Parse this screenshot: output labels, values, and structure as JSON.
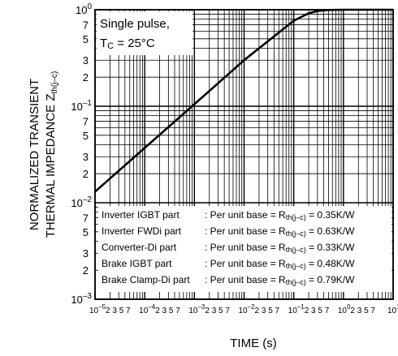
{
  "chart_data": {
    "type": "line",
    "title": "",
    "ylabel": {
      "line1": "NORMALIZED TRANSIENT",
      "line2": "THERMAL IMPEDANCE",
      "symbol": "Z",
      "subscript": "th(j–c)"
    },
    "xlabel": "TIME  (s)",
    "x_scale": "log",
    "y_scale": "log",
    "xlim": [
      1e-05,
      10
    ],
    "ylim": [
      0.001,
      1
    ],
    "grid": true,
    "y_major_ticks": [
      {
        "value": 1,
        "base": "10",
        "exp": "0"
      },
      {
        "value": 0.1,
        "base": "10",
        "exp": "–1"
      },
      {
        "value": 0.01,
        "base": "10",
        "exp": "–2"
      },
      {
        "value": 0.001,
        "base": "10",
        "exp": "–3"
      }
    ],
    "y_minor_tick_labels": [
      "2",
      "3",
      "5",
      "7"
    ],
    "x_tick_labels": [
      {
        "value": 1e-05,
        "base": "10",
        "exp": "–5",
        "minors": "2 3  5 7"
      },
      {
        "value": 0.0001,
        "base": "10",
        "exp": "–4",
        "minors": "2 3  5 7"
      },
      {
        "value": 0.001,
        "base": "10",
        "exp": "–3",
        "minors": "2 3  5 7"
      },
      {
        "value": 0.01,
        "base": "10",
        "exp": "–2",
        "minors": "2 3  5 7"
      },
      {
        "value": 0.1,
        "base": "10",
        "exp": "–1",
        "minors": "2 3  5 7"
      },
      {
        "value": 1,
        "base": "10",
        "exp": "0",
        "minors": "2 3  5 7"
      },
      {
        "value": 10,
        "base": "10",
        "exp": "1",
        "minors": ""
      }
    ],
    "series": [
      {
        "name": "",
        "x": [
          1e-05,
          0.0001,
          0.001,
          0.01,
          0.1,
          0.2,
          0.3,
          0.5,
          1,
          10
        ],
        "y": [
          0.013,
          0.037,
          0.105,
          0.3,
          0.77,
          0.92,
          0.97,
          0.995,
          1.0,
          1.0
        ],
        "color": "#000000"
      }
    ],
    "annotation": {
      "line1": "Single pulse,",
      "line2_main": "T",
      "line2_sub": "C",
      "line2_rest": " = 25°C"
    },
    "parts_table": [
      {
        "part": "Inverter IGBT part",
        "base": ": Per unit base = R",
        "sub": "th(j–c)",
        "value": " = 0.35K/W"
      },
      {
        "part": "Inverter FWDi part",
        "base": ": Per unit base = R",
        "sub": "th(j–c)",
        "value": " = 0.63K/W"
      },
      {
        "part": "Converter-Di part",
        "base": ": Per unit base = R",
        "sub": "th(j–c)",
        "value": " = 0.33K/W"
      },
      {
        "part": "Brake IGBT part",
        "base": ": Per unit base = R",
        "sub": "th(j–c)",
        "value": " = 0.48K/W"
      },
      {
        "part": "Brake Clamp-Di part",
        "base": ": Per unit base = R",
        "sub": "th(j–c)",
        "value": " = 0.79K/W"
      }
    ]
  }
}
